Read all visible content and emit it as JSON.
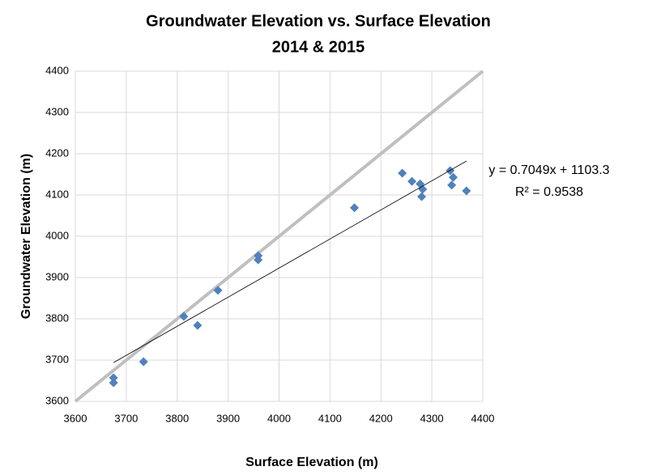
{
  "chart_data": {
    "type": "scatter",
    "title": [
      "Groundwater Elevation vs. Surface Elevation",
      "2014 & 2015"
    ],
    "x_label": "Surface Elevation (m)",
    "y_label": "Groundwater Elevation (m)",
    "x": [
      3675,
      3675,
      3734,
      3813,
      3840,
      3880,
      3959,
      3959,
      4148,
      4242,
      4261,
      4277,
      4282,
      4280,
      4336,
      4342,
      4339,
      4368
    ],
    "values": [
      3657,
      3645,
      3696,
      3806,
      3784,
      3869,
      3953,
      3943,
      4069,
      4153,
      4133,
      4127,
      4114,
      4096,
      4159,
      4143,
      4124,
      4110
    ],
    "color": "#4f81bd",
    "xlim": [
      3600,
      4400
    ],
    "ylim": [
      3600,
      4400
    ],
    "xticks": [
      3600,
      3700,
      3800,
      3900,
      4000,
      4100,
      4200,
      4300,
      4400
    ],
    "yticks": [
      3600,
      3700,
      3800,
      3900,
      4000,
      4100,
      4200,
      4300,
      4400
    ],
    "grid": true,
    "reference_line": {
      "x": [
        3600,
        4400
      ],
      "y": [
        3600,
        4400
      ],
      "color": "#bfbfbf"
    },
    "trendline": {
      "slope": 0.7049,
      "intercept": 1103.3,
      "xrange": [
        3675,
        4368
      ],
      "color": "#000000",
      "equation": "y = 0.7049x + 1103.3",
      "r2": "R² = 0.9538"
    }
  }
}
